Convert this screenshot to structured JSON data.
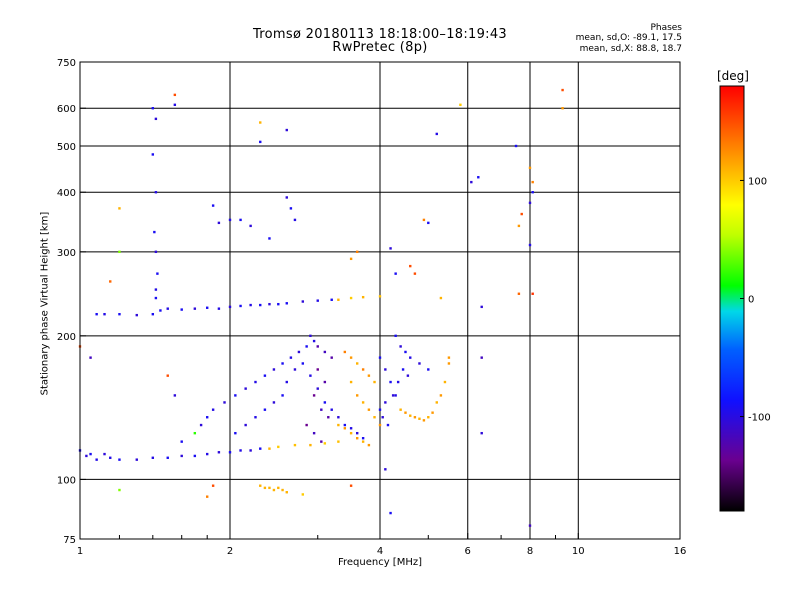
{
  "header": {
    "title": "Tromsø 20180113 18:18:00–18:19:43",
    "subtitle": "RwPretec (8p)"
  },
  "phases": {
    "heading": "Phases",
    "o_line": "mean, sd,O: -89.1, 17.5",
    "x_line": "mean, sd,X: 88.8, 18.7"
  },
  "colorbar": {
    "unit": "[deg]",
    "range": [
      -180,
      180
    ],
    "tick_labels": [
      "100",
      "0",
      "-100"
    ],
    "tick_values": [
      100,
      0,
      -100
    ]
  },
  "chart_data": {
    "type": "scatter",
    "xlabel": "Frequency [MHz]",
    "ylabel": "Stationary phase Virtual Height [km]",
    "xscale": "log",
    "yscale": "log",
    "xlim": [
      1,
      16
    ],
    "ylim": [
      75,
      750
    ],
    "xticks": [
      1,
      2,
      4,
      6,
      8,
      10,
      16
    ],
    "xtick_labels": [
      "1",
      "2",
      "4",
      "6",
      "8",
      "10",
      "16"
    ],
    "xminor": [
      1.2,
      1.4,
      1.6,
      1.8,
      3,
      5,
      7,
      9
    ],
    "yticks": [
      75,
      100,
      200,
      300,
      400,
      500,
      600,
      750
    ],
    "ytick_labels": [
      "75",
      "100",
      "200",
      "300",
      "400",
      "500",
      "600",
      "750"
    ],
    "grid": true,
    "series": [
      {
        "color_by_phase": true,
        "points": [
          [
            1.0,
            115,
            -100
          ],
          [
            1.03,
            112,
            -110
          ],
          [
            1.05,
            113,
            -100
          ],
          [
            1.08,
            110,
            -105
          ],
          [
            1.12,
            113,
            -110
          ],
          [
            1.15,
            111,
            -105
          ],
          [
            1.2,
            110,
            -100
          ],
          [
            1.3,
            110,
            -110
          ],
          [
            1.4,
            111,
            -105
          ],
          [
            1.5,
            111,
            -100
          ],
          [
            1.6,
            112,
            -110
          ],
          [
            1.7,
            112,
            -100
          ],
          [
            1.8,
            113,
            -105
          ],
          [
            1.9,
            114,
            -110
          ],
          [
            2.0,
            114,
            -100
          ],
          [
            2.1,
            115,
            -105
          ],
          [
            2.2,
            115,
            -110
          ],
          [
            2.3,
            116,
            -100
          ],
          [
            2.4,
            116,
            110
          ],
          [
            2.5,
            117,
            100
          ],
          [
            2.7,
            118,
            105
          ],
          [
            2.9,
            118,
            110
          ],
          [
            3.1,
            119,
            100
          ],
          [
            3.3,
            120,
            105
          ],
          [
            1.08,
            222,
            -100
          ],
          [
            1.12,
            222,
            -105
          ],
          [
            1.2,
            222,
            -100
          ],
          [
            1.3,
            221,
            -110
          ],
          [
            1.4,
            222,
            -100
          ],
          [
            1.45,
            226,
            -100
          ],
          [
            1.5,
            228,
            -105
          ],
          [
            1.6,
            227,
            -100
          ],
          [
            1.7,
            228,
            -110
          ],
          [
            1.8,
            229,
            -100
          ],
          [
            1.9,
            228,
            -105
          ],
          [
            2.0,
            230,
            -110
          ],
          [
            2.1,
            231,
            -100
          ],
          [
            2.2,
            232,
            -105
          ],
          [
            2.3,
            232,
            -100
          ],
          [
            2.4,
            233,
            -110
          ],
          [
            2.5,
            233,
            -100
          ],
          [
            2.6,
            234,
            -100
          ],
          [
            2.8,
            236,
            -110
          ],
          [
            3.0,
            237,
            -105
          ],
          [
            3.2,
            238,
            -100
          ],
          [
            3.3,
            238,
            110
          ],
          [
            3.5,
            240,
            100
          ],
          [
            3.7,
            241,
            110
          ],
          [
            4.0,
            242,
            105
          ],
          [
            1.4,
            600,
            -100
          ],
          [
            1.42,
            570,
            -110
          ],
          [
            1.4,
            480,
            -100
          ],
          [
            1.42,
            400,
            -105
          ],
          [
            1.41,
            330,
            -100
          ],
          [
            1.42,
            300,
            -110
          ],
          [
            1.43,
            270,
            -100
          ],
          [
            1.42,
            250,
            -105
          ],
          [
            1.42,
            240,
            -100
          ],
          [
            1.55,
            610,
            -105
          ],
          [
            1.55,
            640,
            150
          ],
          [
            2.6,
            540,
            -110
          ],
          [
            2.3,
            510,
            -100
          ],
          [
            2.3,
            560,
            110
          ],
          [
            5.2,
            530,
            -105
          ],
          [
            5.8,
            610,
            100
          ],
          [
            7.5,
            500,
            -100
          ],
          [
            8.0,
            450,
            120
          ],
          [
            8.1,
            420,
            130
          ],
          [
            8.1,
            400,
            -100
          ],
          [
            8.0,
            380,
            -110
          ],
          [
            7.7,
            360,
            150
          ],
          [
            7.6,
            340,
            120
          ],
          [
            6.1,
            420,
            -110
          ],
          [
            6.3,
            430,
            -100
          ],
          [
            8.0,
            310,
            -105
          ],
          [
            7.6,
            245,
            140
          ],
          [
            8.1,
            245,
            160
          ],
          [
            6.4,
            230,
            -110
          ],
          [
            6.4,
            180,
            -120
          ],
          [
            6.4,
            125,
            -110
          ],
          [
            8.0,
            80,
            -120
          ],
          [
            9.3,
            655,
            150
          ],
          [
            9.3,
            600,
            120
          ],
          [
            1.2,
            370,
            110
          ],
          [
            1.85,
            375,
            -100
          ],
          [
            1.9,
            345,
            -110
          ],
          [
            2.0,
            350,
            -105
          ],
          [
            2.1,
            350,
            -100
          ],
          [
            2.2,
            340,
            -110
          ],
          [
            2.4,
            320,
            -100
          ],
          [
            2.6,
            390,
            -110
          ],
          [
            2.65,
            370,
            -100
          ],
          [
            2.7,
            350,
            -105
          ],
          [
            4.2,
            305,
            -110
          ],
          [
            4.3,
            270,
            -100
          ],
          [
            4.9,
            350,
            130
          ],
          [
            5.0,
            345,
            -100
          ],
          [
            1.2,
            300,
            40
          ],
          [
            1.15,
            260,
            140
          ],
          [
            3.5,
            290,
            120
          ],
          [
            3.6,
            300,
            130
          ],
          [
            4.6,
            280,
            150
          ],
          [
            4.7,
            270,
            150
          ],
          [
            5.3,
            240,
            110
          ],
          [
            5.5,
            180,
            120
          ],
          [
            1.0,
            190,
            150
          ],
          [
            1.05,
            180,
            -120
          ],
          [
            1.5,
            165,
            150
          ],
          [
            1.55,
            150,
            -110
          ],
          [
            1.6,
            120,
            -100
          ],
          [
            1.7,
            125,
            20
          ],
          [
            1.75,
            130,
            -110
          ],
          [
            1.8,
            135,
            -100
          ],
          [
            1.85,
            140,
            -105
          ],
          [
            1.95,
            145,
            -110
          ],
          [
            2.05,
            150,
            -100
          ],
          [
            2.15,
            155,
            -110
          ],
          [
            2.25,
            160,
            -105
          ],
          [
            2.35,
            165,
            -100
          ],
          [
            2.45,
            170,
            -110
          ],
          [
            2.55,
            175,
            -100
          ],
          [
            2.65,
            180,
            -105
          ],
          [
            2.75,
            185,
            -110
          ],
          [
            2.85,
            190,
            -100
          ],
          [
            2.95,
            195,
            -105
          ],
          [
            2.05,
            125,
            -100
          ],
          [
            2.15,
            130,
            -110
          ],
          [
            2.25,
            135,
            -105
          ],
          [
            2.35,
            140,
            -100
          ],
          [
            2.45,
            145,
            -110
          ],
          [
            2.55,
            150,
            -100
          ],
          [
            2.6,
            160,
            -105
          ],
          [
            2.7,
            170,
            -110
          ],
          [
            2.8,
            175,
            -100
          ],
          [
            2.9,
            165,
            -105
          ],
          [
            3.0,
            155,
            -110
          ],
          [
            3.1,
            145,
            -100
          ],
          [
            3.2,
            140,
            -105
          ],
          [
            3.3,
            135,
            -110
          ],
          [
            3.4,
            130,
            -100
          ],
          [
            3.5,
            128,
            -105
          ],
          [
            3.6,
            125,
            -110
          ],
          [
            3.7,
            122,
            -100
          ],
          [
            2.9,
            200,
            -110
          ],
          [
            3.0,
            190,
            -130
          ],
          [
            3.1,
            185,
            -120
          ],
          [
            3.2,
            180,
            -130
          ],
          [
            3.0,
            170,
            -140
          ],
          [
            3.1,
            160,
            -130
          ],
          [
            2.95,
            150,
            -140
          ],
          [
            3.05,
            140,
            -120
          ],
          [
            3.15,
            135,
            -130
          ],
          [
            2.85,
            130,
            -140
          ],
          [
            2.95,
            125,
            -120
          ],
          [
            3.05,
            120,
            -130
          ],
          [
            3.4,
            185,
            130
          ],
          [
            3.5,
            180,
            120
          ],
          [
            3.6,
            175,
            110
          ],
          [
            3.7,
            170,
            130
          ],
          [
            3.8,
            165,
            120
          ],
          [
            3.9,
            160,
            110
          ],
          [
            3.5,
            160,
            110
          ],
          [
            3.6,
            150,
            120
          ],
          [
            3.7,
            145,
            110
          ],
          [
            3.8,
            140,
            120
          ],
          [
            3.9,
            135,
            110
          ],
          [
            4.0,
            130,
            120
          ],
          [
            3.3,
            130,
            110
          ],
          [
            3.4,
            128,
            120
          ],
          [
            3.5,
            125,
            110
          ],
          [
            3.6,
            122,
            120
          ],
          [
            3.7,
            120,
            110
          ],
          [
            3.8,
            118,
            120
          ],
          [
            4.0,
            180,
            -100
          ],
          [
            4.1,
            170,
            -110
          ],
          [
            4.2,
            160,
            -100
          ],
          [
            4.3,
            150,
            -105
          ],
          [
            4.1,
            145,
            -110
          ],
          [
            4.0,
            140,
            -100
          ],
          [
            4.05,
            135,
            -110
          ],
          [
            4.15,
            130,
            -100
          ],
          [
            4.25,
            150,
            -110
          ],
          [
            4.35,
            160,
            -105
          ],
          [
            4.45,
            170,
            -100
          ],
          [
            4.55,
            165,
            -110
          ],
          [
            4.4,
            140,
            110
          ],
          [
            4.5,
            138,
            120
          ],
          [
            4.6,
            136,
            110
          ],
          [
            4.7,
            135,
            120
          ],
          [
            4.8,
            134,
            110
          ],
          [
            4.9,
            133,
            120
          ],
          [
            5.0,
            135,
            110
          ],
          [
            5.1,
            138,
            120
          ],
          [
            5.2,
            145,
            110
          ],
          [
            5.3,
            150,
            120
          ],
          [
            5.4,
            160,
            110
          ],
          [
            5.5,
            175,
            120
          ],
          [
            4.3,
            200,
            -100
          ],
          [
            4.4,
            190,
            -110
          ],
          [
            4.5,
            185,
            -100
          ],
          [
            4.6,
            180,
            -105
          ],
          [
            4.8,
            175,
            -110
          ],
          [
            5.0,
            170,
            -100
          ],
          [
            4.1,
            105,
            -110
          ],
          [
            4.2,
            85,
            -100
          ],
          [
            3.5,
            97,
            150
          ],
          [
            2.3,
            97,
            110
          ],
          [
            2.35,
            96,
            110
          ],
          [
            2.4,
            96,
            110
          ],
          [
            2.45,
            95,
            110
          ],
          [
            2.5,
            96,
            110
          ],
          [
            2.55,
            95,
            110
          ],
          [
            2.6,
            94,
            110
          ],
          [
            2.8,
            93,
            100
          ],
          [
            1.8,
            92,
            130
          ],
          [
            1.85,
            97,
            150
          ],
          [
            1.2,
            95,
            40
          ]
        ]
      }
    ]
  }
}
